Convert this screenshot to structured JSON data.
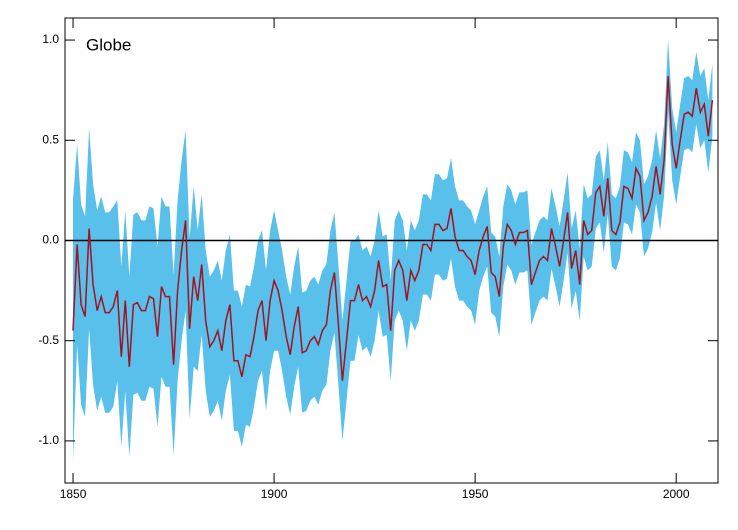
{
  "chart_data": {
    "type": "line",
    "annotation": "Globe",
    "x": [
      1850,
      1851,
      1852,
      1853,
      1854,
      1855,
      1856,
      1857,
      1858,
      1859,
      1860,
      1861,
      1862,
      1863,
      1864,
      1865,
      1866,
      1867,
      1868,
      1869,
      1870,
      1871,
      1872,
      1873,
      1874,
      1875,
      1876,
      1877,
      1878,
      1879,
      1880,
      1881,
      1882,
      1883,
      1884,
      1885,
      1886,
      1887,
      1888,
      1889,
      1890,
      1891,
      1892,
      1893,
      1894,
      1895,
      1896,
      1897,
      1898,
      1899,
      1900,
      1901,
      1902,
      1903,
      1904,
      1905,
      1906,
      1907,
      1908,
      1909,
      1910,
      1911,
      1912,
      1913,
      1914,
      1915,
      1916,
      1917,
      1918,
      1919,
      1920,
      1921,
      1922,
      1923,
      1924,
      1925,
      1926,
      1927,
      1928,
      1929,
      1930,
      1931,
      1932,
      1933,
      1934,
      1935,
      1936,
      1937,
      1938,
      1939,
      1940,
      1941,
      1942,
      1943,
      1944,
      1945,
      1946,
      1947,
      1948,
      1949,
      1950,
      1951,
      1952,
      1953,
      1954,
      1955,
      1956,
      1957,
      1958,
      1959,
      1960,
      1961,
      1962,
      1963,
      1964,
      1965,
      1966,
      1967,
      1968,
      1969,
      1970,
      1971,
      1972,
      1973,
      1974,
      1975,
      1976,
      1977,
      1978,
      1979,
      1980,
      1981,
      1982,
      1983,
      1984,
      1985,
      1986,
      1987,
      1988,
      1989,
      1990,
      1991,
      1992,
      1993,
      1994,
      1995,
      1996,
      1997,
      1998,
      1999,
      2000,
      2001,
      2002,
      2003,
      2004,
      2005,
      2006,
      2007,
      2008,
      2009
    ],
    "values": [
      -0.45,
      -0.02,
      -0.32,
      -0.38,
      0.06,
      -0.22,
      -0.35,
      -0.28,
      -0.36,
      -0.36,
      -0.33,
      -0.25,
      -0.58,
      -0.3,
      -0.63,
      -0.32,
      -0.31,
      -0.35,
      -0.35,
      -0.28,
      -0.29,
      -0.48,
      -0.23,
      -0.28,
      -0.28,
      -0.62,
      -0.25,
      -0.05,
      0.1,
      -0.44,
      -0.18,
      -0.3,
      -0.12,
      -0.4,
      -0.53,
      -0.5,
      -0.45,
      -0.55,
      -0.4,
      -0.32,
      -0.6,
      -0.6,
      -0.68,
      -0.57,
      -0.58,
      -0.48,
      -0.35,
      -0.3,
      -0.5,
      -0.3,
      -0.2,
      -0.25,
      -0.35,
      -0.48,
      -0.57,
      -0.43,
      -0.33,
      -0.56,
      -0.55,
      -0.5,
      -0.48,
      -0.52,
      -0.45,
      -0.42,
      -0.25,
      -0.16,
      -0.42,
      -0.7,
      -0.5,
      -0.3,
      -0.3,
      -0.22,
      -0.3,
      -0.28,
      -0.33,
      -0.25,
      -0.1,
      -0.23,
      -0.22,
      -0.45,
      -0.15,
      -0.1,
      -0.15,
      -0.3,
      -0.15,
      -0.2,
      -0.15,
      -0.02,
      -0.02,
      -0.05,
      0.08,
      0.08,
      0.05,
      0.06,
      0.16,
      0.02,
      -0.05,
      -0.05,
      -0.08,
      -0.1,
      -0.17,
      -0.05,
      0.02,
      0.07,
      -0.16,
      -0.18,
      -0.28,
      -0.03,
      0.08,
      0.05,
      -0.02,
      0.04,
      0.04,
      0.05,
      -0.22,
      -0.16,
      -0.1,
      -0.08,
      -0.1,
      0.06,
      -0.03,
      -0.13,
      0.0,
      0.14,
      -0.14,
      -0.05,
      -0.22,
      0.1,
      0.03,
      0.05,
      0.24,
      0.27,
      0.12,
      0.31,
      0.05,
      0.03,
      0.09,
      0.27,
      0.26,
      0.21,
      0.36,
      0.32,
      0.1,
      0.14,
      0.22,
      0.37,
      0.23,
      0.4,
      0.82,
      0.48,
      0.36,
      0.5,
      0.63,
      0.64,
      0.62,
      0.76,
      0.64,
      0.68,
      0.52,
      0.7
    ],
    "errors": [
      0.65,
      0.5,
      0.5,
      0.5,
      0.5,
      0.5,
      0.5,
      0.5,
      0.5,
      0.5,
      0.5,
      0.45,
      0.45,
      0.45,
      0.45,
      0.45,
      0.45,
      0.45,
      0.45,
      0.45,
      0.45,
      0.45,
      0.45,
      0.45,
      0.45,
      0.45,
      0.45,
      0.45,
      0.45,
      0.45,
      0.45,
      0.35,
      0.35,
      0.35,
      0.35,
      0.35,
      0.35,
      0.35,
      0.35,
      0.35,
      0.35,
      0.35,
      0.35,
      0.35,
      0.35,
      0.35,
      0.35,
      0.35,
      0.35,
      0.35,
      0.35,
      0.3,
      0.3,
      0.3,
      0.3,
      0.3,
      0.3,
      0.3,
      0.3,
      0.3,
      0.3,
      0.3,
      0.3,
      0.3,
      0.3,
      0.3,
      0.3,
      0.3,
      0.3,
      0.3,
      0.3,
      0.25,
      0.25,
      0.25,
      0.25,
      0.25,
      0.25,
      0.25,
      0.25,
      0.25,
      0.25,
      0.25,
      0.25,
      0.25,
      0.25,
      0.25,
      0.25,
      0.25,
      0.25,
      0.25,
      0.25,
      0.25,
      0.25,
      0.25,
      0.25,
      0.25,
      0.25,
      0.25,
      0.25,
      0.25,
      0.25,
      0.2,
      0.2,
      0.2,
      0.2,
      0.2,
      0.2,
      0.2,
      0.2,
      0.2,
      0.2,
      0.2,
      0.2,
      0.2,
      0.2,
      0.2,
      0.2,
      0.2,
      0.2,
      0.2,
      0.2,
      0.2,
      0.2,
      0.2,
      0.2,
      0.2,
      0.18,
      0.18,
      0.18,
      0.18,
      0.18,
      0.18,
      0.18,
      0.18,
      0.18,
      0.18,
      0.18,
      0.18,
      0.18,
      0.18,
      0.18,
      0.18,
      0.18,
      0.18,
      0.18,
      0.18,
      0.18,
      0.18,
      0.18,
      0.18,
      0.18,
      0.18,
      0.18,
      0.18,
      0.18,
      0.18,
      0.18,
      0.18,
      0.18,
      0.18
    ],
    "color": "#a3121f",
    "band_color": "#58c0ea",
    "xlim": [
      1848,
      2010.4
    ],
    "ylim": [
      -1.21,
      1.11
    ],
    "xticks": [
      1850,
      1900,
      1950,
      2000
    ],
    "yticks": [
      {
        "value": -1.0,
        "label": "-1.0"
      },
      -0.5,
      {
        "value": 0.0,
        "label": "0.0"
      },
      0.5,
      {
        "value": 1.0,
        "label": "1.0"
      }
    ],
    "zero_line": true
  }
}
